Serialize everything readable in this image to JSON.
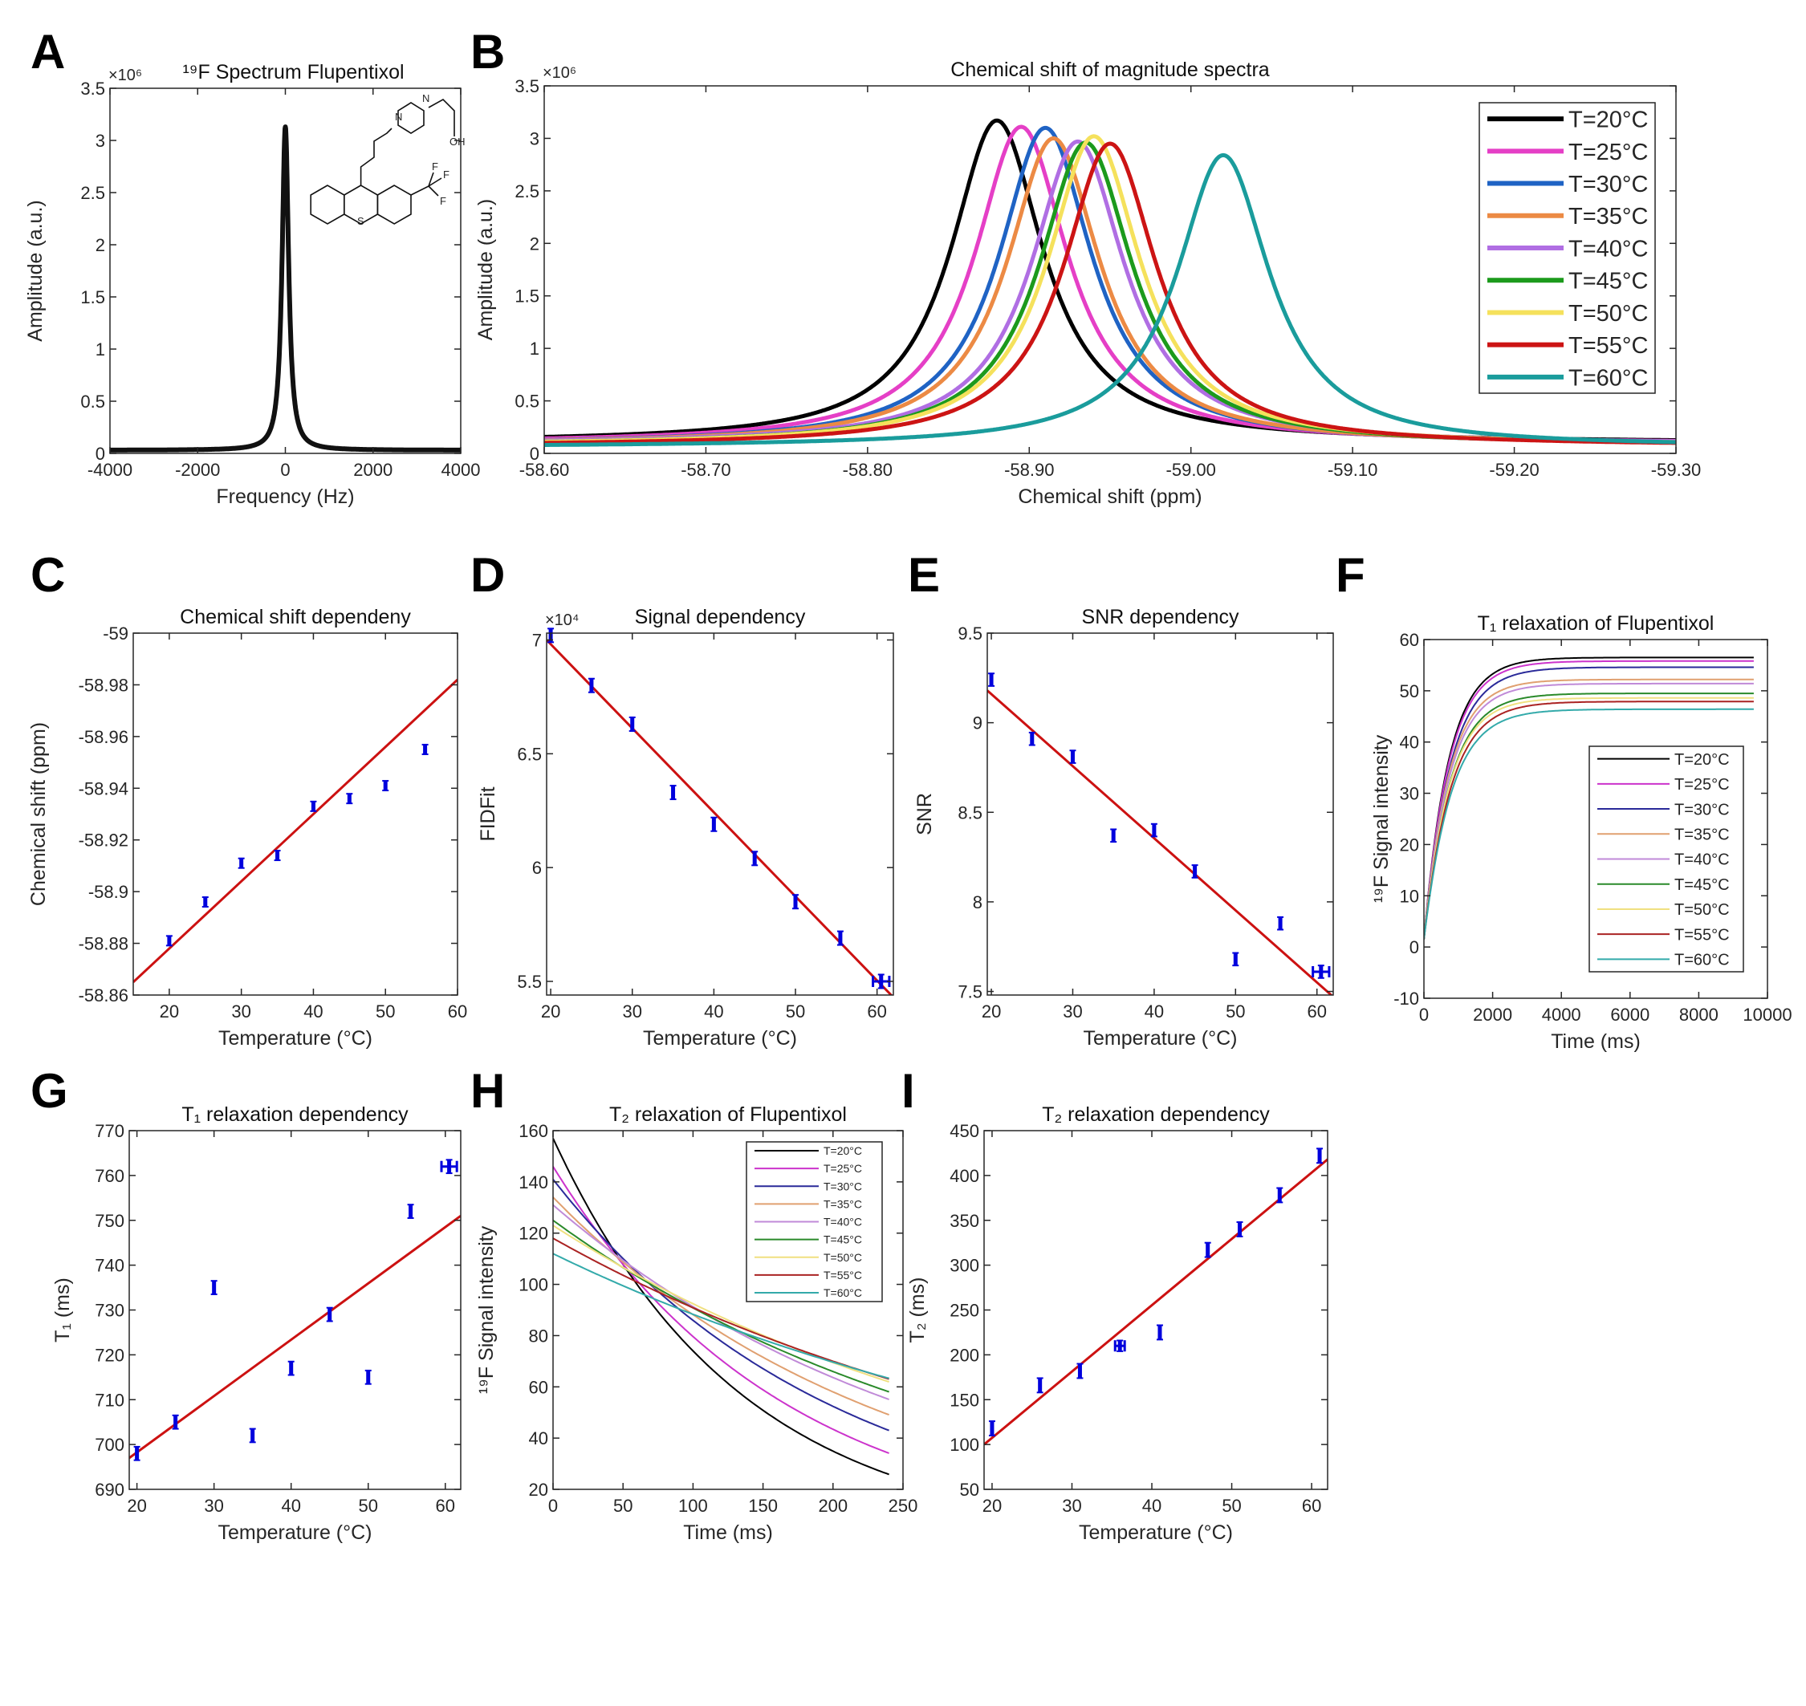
{
  "colors": [
    "#000000",
    "#e53fc6",
    "#1f63c4",
    "#ec8a44",
    "#b06ee3",
    "#1c9a1c",
    "#f5e15c",
    "#cc1414",
    "#1a9c9c"
  ],
  "thin_colors": [
    "#000000",
    "#cc33cc",
    "#2a2a99",
    "#e0a070",
    "#c08ad8",
    "#2a8a2a",
    "#f0e080",
    "#aa2222",
    "#33aaaa"
  ],
  "temperatures": [
    "T=20°C",
    "T=25°C",
    "T=30°C",
    "T=35°C",
    "T=40°C",
    "T=45°C",
    "T=50°C",
    "T=55°C",
    "T=60°C"
  ],
  "chart_data": [
    {
      "panel": "A",
      "type": "line",
      "title": "¹⁹F Spectrum Flupentixol",
      "xlabel": "Frequency (Hz)",
      "ylabel": "Amplitude (a.u.)",
      "exponent": "×10⁶",
      "xlim": [
        -4000,
        4000
      ],
      "ylim": [
        0,
        3.5
      ],
      "xticks": [
        -4000,
        -2000,
        0,
        2000,
        4000
      ],
      "xtick_labels": [
        "-4000",
        "-2000",
        "0",
        "2000",
        "4000"
      ],
      "yticks": [
        0,
        0.5,
        1,
        1.5,
        2,
        2.5,
        3,
        3.5
      ],
      "ytick_labels": [
        "0",
        "0.5",
        "1",
        "1.5",
        "2",
        "2.5",
        "3",
        "3.5"
      ],
      "series": [
        {
          "model": "lorentzian",
          "center": 0,
          "peak": 3.1,
          "hwhm": 90,
          "baseline": 0.03
        }
      ],
      "structure_labels": [
        "N",
        "N",
        "OH",
        "F",
        "F",
        "F",
        "S"
      ]
    },
    {
      "panel": "B",
      "type": "line",
      "title": "Chemical shift of magnitude spectra",
      "xlabel": "Chemical shift (ppm)",
      "ylabel": "Amplitude (a.u.)",
      "exponent": "×10⁶",
      "xlim": [
        -58.6,
        -59.3
      ],
      "ylim": [
        0,
        3.5
      ],
      "xticks": [
        -58.6,
        -58.7,
        -58.8,
        -58.9,
        -59.0,
        -59.1,
        -59.2,
        -59.3
      ],
      "xtick_labels": [
        "-58.60",
        "-58.70",
        "-58.80",
        "-58.90",
        "-59.00",
        "-59.10",
        "-59.20",
        "-59.30"
      ],
      "yticks": [
        0,
        0.5,
        1,
        1.5,
        2,
        2.5,
        3,
        3.5
      ],
      "ytick_labels": [
        "0",
        "0.5",
        "1",
        "1.5",
        "2",
        "2.5",
        "3",
        "3.5"
      ],
      "legend": "top-right",
      "series": [
        {
          "name": "T=20°C",
          "model": "lorentzian",
          "center": -58.88,
          "peak": 3.05,
          "hwhm": 0.035,
          "baseline": 0.12
        },
        {
          "name": "T=25°C",
          "model": "lorentzian",
          "center": -58.895,
          "peak": 3.0,
          "hwhm": 0.035,
          "baseline": 0.11
        },
        {
          "name": "T=30°C",
          "model": "lorentzian",
          "center": -58.91,
          "peak": 3.0,
          "hwhm": 0.035,
          "baseline": 0.1
        },
        {
          "name": "T=35°C",
          "model": "lorentzian",
          "center": -58.915,
          "peak": 2.9,
          "hwhm": 0.035,
          "baseline": 0.1
        },
        {
          "name": "T=40°C",
          "model": "lorentzian",
          "center": -58.93,
          "peak": 2.87,
          "hwhm": 0.035,
          "baseline": 0.1
        },
        {
          "name": "T=45°C",
          "model": "lorentzian",
          "center": -58.935,
          "peak": 2.87,
          "hwhm": 0.035,
          "baseline": 0.09
        },
        {
          "name": "T=50°C",
          "model": "lorentzian",
          "center": -58.94,
          "peak": 2.93,
          "hwhm": 0.035,
          "baseline": 0.09
        },
        {
          "name": "T=55°C",
          "model": "lorentzian",
          "center": -58.95,
          "peak": 2.87,
          "hwhm": 0.035,
          "baseline": 0.08
        },
        {
          "name": "T=60°C",
          "model": "lorentzian",
          "center": -59.02,
          "peak": 2.77,
          "hwhm": 0.035,
          "baseline": 0.07
        }
      ]
    },
    {
      "panel": "C",
      "type": "scatter",
      "title": "Chemical shift dependeny",
      "xlabel": "Temperature (°C)",
      "ylabel": "Chemical shift (ppm)",
      "xlim": [
        15,
        60
      ],
      "ylim": [
        -58.86,
        -59.0
      ],
      "xticks": [
        20,
        30,
        40,
        50,
        60
      ],
      "xtick_labels": [
        "20",
        "30",
        "40",
        "50",
        "60"
      ],
      "yticks": [
        -58.86,
        -58.88,
        -58.9,
        -58.92,
        -58.94,
        -58.96,
        -58.98,
        -59.0
      ],
      "ytick_labels": [
        "-58.86",
        "-58.88",
        "-58.9",
        "-58.92",
        "-58.94",
        "-58.96",
        "-58.98",
        "-59"
      ],
      "points": [
        {
          "x": 20,
          "y": -58.881,
          "yerr": 0.0018
        },
        {
          "x": 25,
          "y": -58.896,
          "yerr": 0.0018
        },
        {
          "x": 30,
          "y": -58.911,
          "yerr": 0.0018
        },
        {
          "x": 35,
          "y": -58.914,
          "yerr": 0.0018
        },
        {
          "x": 40,
          "y": -58.933,
          "yerr": 0.0018
        },
        {
          "x": 45,
          "y": -58.936,
          "yerr": 0.0018
        },
        {
          "x": 50,
          "y": -58.941,
          "yerr": 0.0018
        },
        {
          "x": 55.5,
          "y": -58.955,
          "yerr": 0.0018
        }
      ],
      "fit": [
        [
          15,
          -58.865
        ],
        [
          60,
          -58.982
        ]
      ]
    },
    {
      "panel": "D",
      "type": "scatter",
      "title": "Signal dependency",
      "xlabel": "Temperature (°C)",
      "ylabel": "FIDFit",
      "exponent": "×10⁴",
      "xlim": [
        19.5,
        62
      ],
      "ylim": [
        5.44,
        7.03
      ],
      "xticks": [
        20,
        30,
        40,
        50,
        60
      ],
      "xtick_labels": [
        "20",
        "30",
        "40",
        "50",
        "60"
      ],
      "yticks": [
        5.5,
        6,
        6.5,
        7
      ],
      "ytick_labels": [
        "5.5",
        "6",
        "6.5",
        "7"
      ],
      "points": [
        {
          "x": 20,
          "y": 7.02,
          "yerr": 0.03
        },
        {
          "x": 25,
          "y": 6.8,
          "yerr": 0.03
        },
        {
          "x": 30,
          "y": 6.63,
          "yerr": 0.03
        },
        {
          "x": 35,
          "y": 6.33,
          "yerr": 0.03
        },
        {
          "x": 40,
          "y": 6.19,
          "yerr": 0.03
        },
        {
          "x": 45,
          "y": 6.04,
          "yerr": 0.03
        },
        {
          "x": 50,
          "y": 5.85,
          "yerr": 0.03
        },
        {
          "x": 55.5,
          "y": 5.69,
          "yerr": 0.03
        },
        {
          "x": 60.5,
          "y": 5.5,
          "yerr": 0.03,
          "xerr": 1
        }
      ],
      "fit": [
        [
          19.5,
          7.0
        ],
        [
          62,
          5.43
        ]
      ]
    },
    {
      "panel": "E",
      "type": "scatter",
      "title": "SNR dependency",
      "xlabel": "Temperature (°C)",
      "ylabel": "SNR",
      "xlim": [
        19.5,
        62
      ],
      "ylim": [
        7.48,
        9.5
      ],
      "xticks": [
        20,
        30,
        40,
        50,
        60
      ],
      "xtick_labels": [
        "20",
        "30",
        "40",
        "50",
        "60"
      ],
      "yticks": [
        7.5,
        8,
        8.5,
        9,
        9.5
      ],
      "ytick_labels": [
        "7.5",
        "8",
        "8.5",
        "9",
        "9.5"
      ],
      "points": [
        {
          "x": 20,
          "y": 9.24,
          "yerr": 0.035
        },
        {
          "x": 25,
          "y": 8.91,
          "yerr": 0.035
        },
        {
          "x": 30,
          "y": 8.81,
          "yerr": 0.035
        },
        {
          "x": 35,
          "y": 8.37,
          "yerr": 0.035
        },
        {
          "x": 40,
          "y": 8.4,
          "yerr": 0.035
        },
        {
          "x": 45,
          "y": 8.17,
          "yerr": 0.035
        },
        {
          "x": 50,
          "y": 7.68,
          "yerr": 0.035
        },
        {
          "x": 55.5,
          "y": 7.88,
          "yerr": 0.035
        },
        {
          "x": 60.5,
          "y": 7.61,
          "yerr": 0.035,
          "xerr": 1
        }
      ],
      "fit": [
        [
          19.5,
          9.18
        ],
        [
          62,
          7.47
        ]
      ]
    },
    {
      "panel": "F",
      "type": "line",
      "title": "T₁ relaxation of Flupentixol",
      "xlabel": "Time (ms)",
      "ylabel": "¹⁹F Signal intensity",
      "xlim": [
        0,
        10000
      ],
      "ylim": [
        -10,
        60
      ],
      "xticks": [
        0,
        2000,
        4000,
        6000,
        8000,
        10000
      ],
      "xtick_labels": [
        "0",
        "2000",
        "4000",
        "6000",
        "8000",
        "10000"
      ],
      "yticks": [
        -10,
        0,
        10,
        20,
        30,
        40,
        50,
        60
      ],
      "ytick_labels": [
        "-10",
        "0",
        "10",
        "20",
        "30",
        "40",
        "50",
        "60"
      ],
      "legend": "center-right",
      "series": [
        {
          "name": "T=20°C",
          "model": "t1_recovery",
          "plateau": 56.5,
          "t1_ms": 698
        },
        {
          "name": "T=25°C",
          "model": "t1_recovery",
          "plateau": 55.8,
          "t1_ms": 705
        },
        {
          "name": "T=30°C",
          "model": "t1_recovery",
          "plateau": 54.6,
          "t1_ms": 735
        },
        {
          "name": "T=35°C",
          "model": "t1_recovery",
          "plateau": 52.2,
          "t1_ms": 702
        },
        {
          "name": "T=40°C",
          "model": "t1_recovery",
          "plateau": 51.4,
          "t1_ms": 717
        },
        {
          "name": "T=45°C",
          "model": "t1_recovery",
          "plateau": 49.5,
          "t1_ms": 729
        },
        {
          "name": "T=50°C",
          "model": "t1_recovery",
          "plateau": 48.6,
          "t1_ms": 715
        },
        {
          "name": "T=55°C",
          "model": "t1_recovery",
          "plateau": 47.9,
          "t1_ms": 752
        },
        {
          "name": "T=60°C",
          "model": "t1_recovery",
          "plateau": 46.4,
          "t1_ms": 762
        }
      ]
    },
    {
      "panel": "G",
      "type": "scatter",
      "title": "T₁ relaxation dependency",
      "xlabel": "Temperature (°C)",
      "ylabel": "T₁ (ms)",
      "xlim": [
        19,
        62
      ],
      "ylim": [
        690,
        770
      ],
      "xticks": [
        20,
        30,
        40,
        50,
        60
      ],
      "xtick_labels": [
        "20",
        "30",
        "40",
        "50",
        "60"
      ],
      "yticks": [
        690,
        700,
        710,
        720,
        730,
        740,
        750,
        760,
        770
      ],
      "ytick_labels": [
        "690",
        "700",
        "710",
        "720",
        "730",
        "740",
        "750",
        "760",
        "770"
      ],
      "points": [
        {
          "x": 20,
          "y": 698,
          "yerr": 1.5
        },
        {
          "x": 25,
          "y": 705,
          "yerr": 1.5
        },
        {
          "x": 30,
          "y": 735,
          "yerr": 1.5
        },
        {
          "x": 35,
          "y": 702,
          "yerr": 1.5
        },
        {
          "x": 40,
          "y": 717,
          "yerr": 1.5
        },
        {
          "x": 45,
          "y": 729,
          "yerr": 1.5
        },
        {
          "x": 50,
          "y": 715,
          "yerr": 1.5
        },
        {
          "x": 55.5,
          "y": 752,
          "yerr": 1.5
        },
        {
          "x": 60.5,
          "y": 762,
          "yerr": 1.5,
          "xerr": 1
        }
      ],
      "fit": [
        [
          19,
          697
        ],
        [
          62,
          751
        ]
      ]
    },
    {
      "panel": "H",
      "type": "line",
      "title": "T₂ relaxation of Flupentixol",
      "xlabel": "Time (ms)",
      "ylabel": "¹⁹F Signal intensity",
      "xlim": [
        0,
        250
      ],
      "ylim": [
        20,
        160
      ],
      "xticks": [
        0,
        50,
        100,
        150,
        200,
        250
      ],
      "xtick_labels": [
        "0",
        "50",
        "100",
        "150",
        "200",
        "250"
      ],
      "yticks": [
        20,
        40,
        60,
        80,
        100,
        120,
        140,
        160
      ],
      "ytick_labels": [
        "20",
        "40",
        "60",
        "80",
        "100",
        "120",
        "140",
        "160"
      ],
      "legend": "top-right",
      "series": [
        {
          "name": "T=20°C",
          "model": "t2_decay",
          "s0": 157,
          "t2_ms": 133
        },
        {
          "name": "T=25°C",
          "model": "t2_decay",
          "s0": 146,
          "t2_ms": 165
        },
        {
          "name": "T=30°C",
          "model": "t2_decay",
          "s0": 141,
          "t2_ms": 202
        },
        {
          "name": "T=35°C",
          "model": "t2_decay",
          "s0": 134,
          "t2_ms": 239
        },
        {
          "name": "T=40°C",
          "model": "t2_decay",
          "s0": 131,
          "t2_ms": 277
        },
        {
          "name": "T=45°C",
          "model": "t2_decay",
          "s0": 125,
          "t2_ms": 313
        },
        {
          "name": "T=50°C",
          "model": "t2_decay",
          "s0": 123,
          "t2_ms": 350
        },
        {
          "name": "T=55°C",
          "model": "t2_decay",
          "s0": 118,
          "t2_ms": 383
        },
        {
          "name": "T=60°C",
          "model": "t2_decay",
          "s0": 112,
          "t2_ms": 421
        }
      ]
    },
    {
      "panel": "I",
      "type": "scatter",
      "title": "T₂ relaxation dependency",
      "xlabel": "Temperature (°C)",
      "ylabel": "T₂ (ms)",
      "xlim": [
        19,
        62
      ],
      "ylim": [
        50,
        450
      ],
      "xticks": [
        20,
        30,
        40,
        50,
        60
      ],
      "xtick_labels": [
        "20",
        "30",
        "40",
        "50",
        "60"
      ],
      "yticks": [
        50,
        100,
        150,
        200,
        250,
        300,
        350,
        400,
        450
      ],
      "ytick_labels": [
        "50",
        "100",
        "150",
        "200",
        "250",
        "300",
        "350",
        "400",
        "450"
      ],
      "points": [
        {
          "x": 20,
          "y": 118,
          "yerr": 8
        },
        {
          "x": 26,
          "y": 166,
          "yerr": 8
        },
        {
          "x": 31,
          "y": 182,
          "yerr": 8
        },
        {
          "x": 36,
          "y": 210,
          "yerr": 6,
          "xerr": 0.6
        },
        {
          "x": 41,
          "y": 225,
          "yerr": 8
        },
        {
          "x": 47,
          "y": 317,
          "yerr": 8
        },
        {
          "x": 51,
          "y": 340,
          "yerr": 8
        },
        {
          "x": 56,
          "y": 378,
          "yerr": 8
        },
        {
          "x": 61,
          "y": 422,
          "yerr": 8
        }
      ],
      "fit": [
        [
          19,
          100
        ],
        [
          62,
          418
        ]
      ]
    }
  ]
}
